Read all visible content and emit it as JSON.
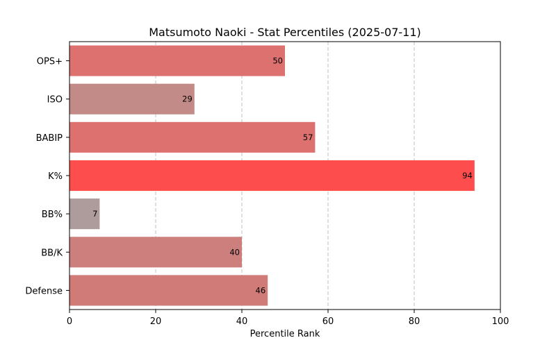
{
  "chart_data": {
    "type": "bar",
    "orientation": "horizontal",
    "title": "Matsumoto Naoki - Stat Percentiles (2025-07-11)",
    "xlabel": "Percentile Rank",
    "ylabel": "",
    "xlim": [
      0,
      100
    ],
    "xticks": [
      0,
      20,
      40,
      60,
      80,
      100
    ],
    "grid": "x-dashed",
    "categories": [
      "OPS+",
      "ISO",
      "BABIP",
      "K%",
      "BB%",
      "BB/K",
      "Defense"
    ],
    "values": [
      50,
      29,
      57,
      94,
      7,
      40,
      46
    ],
    "colors": [
      "#dc7170",
      "#c28b88",
      "#dd7170",
      "#fe4d4d",
      "#ad9c9b",
      "#cd7f7d",
      "#d07b77"
    ]
  }
}
